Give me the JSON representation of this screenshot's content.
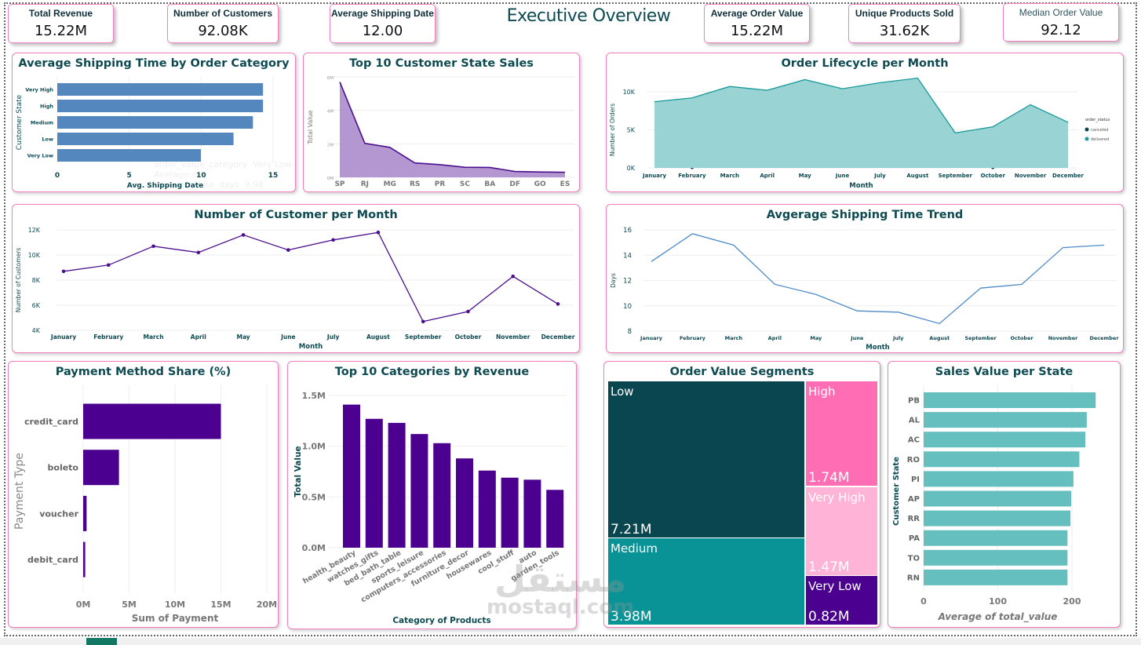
{
  "header": {
    "title": "Executive Overview",
    "kpis": [
      {
        "label": "Total Revenue",
        "value": "15.22M"
      },
      {
        "label": "Number of Customers",
        "value": "92.08K"
      },
      {
        "label": "Average Shipping Date",
        "value": "12.00"
      },
      {
        "label": "Average Order Value",
        "value": "15.22M"
      },
      {
        "label": "Unique Products Sold",
        "value": "31.62K"
      },
      {
        "label": "Median Order Value",
        "value": "92.12"
      }
    ]
  },
  "tooltip_ghost": {
    "field": "order_value_category",
    "field_value": "Very Low",
    "measure": "Average of shipping_time_days",
    "measure_value": "9.98"
  },
  "watermark": {
    "arabic": "مستقل",
    "latin": "mostaql.com"
  },
  "colors": {
    "title": "#0d4a52",
    "card_border": "#f27fbf",
    "blue_bar": "#5387be",
    "purple": "#4b0090",
    "purple_area": "#b497d0",
    "teal_area": "#99d3d3",
    "teal_line": "#1a9a9a",
    "teal_bar": "#66bfbf"
  },
  "chart_data": [
    {
      "type": "bar",
      "orientation": "horizontal",
      "title": "Average Shipping Time by Order Category",
      "xlabel": "Avg. Shipping Date",
      "ylabel": "Customer State",
      "categories": [
        "Very High",
        "High",
        "Medium",
        "Low",
        "Very Low"
      ],
      "values": [
        14.3,
        14.3,
        13.6,
        12.25,
        9.98
      ],
      "xlim": [
        0,
        15
      ],
      "xticks": [
        "0",
        "5",
        "10",
        "15"
      ],
      "grid": true
    },
    {
      "type": "area",
      "title": "Top 10 Customer State Sales",
      "xlabel": "",
      "ylabel": "Total Value",
      "categories": [
        "SP",
        "RJ",
        "MG",
        "RS",
        "PR",
        "SC",
        "BA",
        "DF",
        "GO",
        "ES"
      ],
      "values": [
        5.7,
        2.03,
        1.79,
        0.86,
        0.76,
        0.6,
        0.59,
        0.35,
        0.32,
        0.3
      ],
      "unit": "M",
      "ylim": [
        0,
        6
      ],
      "yticks": [
        "0M",
        "2M",
        "4M",
        "6M"
      ],
      "grid": true
    },
    {
      "type": "area",
      "title": "Order Lifecycle per Month",
      "xlabel": "Month",
      "ylabel": "Number of Orders",
      "categories": [
        "January",
        "February",
        "March",
        "April",
        "May",
        "June",
        "July",
        "August",
        "September",
        "October",
        "November",
        "December"
      ],
      "legend_title": "order_status",
      "legend_position": "right",
      "series": [
        {
          "name": "canceled",
          "color": "#0a4650",
          "values": [
            null,
            0.05,
            null,
            null,
            null,
            null,
            null,
            null,
            null,
            0.05,
            null,
            null
          ]
        },
        {
          "name": "delivered",
          "color": "#1a9a9a",
          "values": [
            8.7,
            9.2,
            10.7,
            10.2,
            11.6,
            10.4,
            11.2,
            11.8,
            4.6,
            5.4,
            8.3,
            6.0
          ]
        }
      ],
      "unit": "K",
      "ylim": [
        0,
        12
      ],
      "yticks": [
        "0K",
        "5K",
        "10K"
      ],
      "grid": true
    },
    {
      "type": "line",
      "title": "Number of Customer per Month",
      "xlabel": "Month",
      "ylabel": "Number of Customers",
      "categories": [
        "January",
        "February",
        "March",
        "April",
        "May",
        "June",
        "July",
        "August",
        "September",
        "October",
        "November",
        "December"
      ],
      "values": [
        8.7,
        9.2,
        10.7,
        10.2,
        11.6,
        10.4,
        11.2,
        11.8,
        4.7,
        5.5,
        8.3,
        6.1
      ],
      "unit": "K",
      "ylim": [
        4,
        12
      ],
      "yticks": [
        "4K",
        "6K",
        "8K",
        "10K",
        "12K"
      ],
      "grid": true
    },
    {
      "type": "line",
      "title": "Avgerage Shipping Time Trend",
      "xlabel": "Month",
      "ylabel": "Days",
      "categories": [
        "January",
        "February",
        "March",
        "April",
        "May",
        "June",
        "July",
        "August",
        "September",
        "October",
        "November",
        "December"
      ],
      "values": [
        13.5,
        15.7,
        14.8,
        11.7,
        10.9,
        9.6,
        9.5,
        8.6,
        11.4,
        11.7,
        14.6,
        14.8
      ],
      "ylim": [
        8,
        16
      ],
      "yticks": [
        "8",
        "10",
        "12",
        "14",
        "16"
      ],
      "grid": true
    },
    {
      "type": "bar",
      "orientation": "horizontal",
      "title": "Payment Method Share (%)",
      "xlabel": "Sum of Payment",
      "ylabel": "Payment Type",
      "categories": [
        "credit_card",
        "boleto",
        "voucher",
        "debit_card"
      ],
      "values": [
        15.0,
        3.9,
        0.37,
        0.22
      ],
      "unit": "M",
      "xlim": [
        0,
        20
      ],
      "xticks": [
        "0M",
        "5M",
        "10M",
        "15M",
        "20M"
      ],
      "grid": true
    },
    {
      "type": "bar",
      "title": "Top 10 Categories by Revenue",
      "xlabel": "Category of Products",
      "ylabel": "Total Value",
      "categories": [
        "health_beauty",
        "watches_gifts",
        "bed_bath_table",
        "sports_leisure",
        "computers_accessories",
        "furniture_decor",
        "housewares",
        "cool_stuff",
        "auto",
        "garden_tools"
      ],
      "values": [
        1.41,
        1.27,
        1.23,
        1.12,
        1.03,
        0.88,
        0.76,
        0.69,
        0.67,
        0.57
      ],
      "unit": "M",
      "ylim": [
        0,
        1.5
      ],
      "yticks": [
        "0.0M",
        "0.5M",
        "1.0M",
        "1.5M"
      ],
      "grid": true
    },
    {
      "type": "treemap",
      "title": "Order Value Segments",
      "items": [
        {
          "name": "Low",
          "value": 7.21,
          "label": "7.21M",
          "color": "#0a4650"
        },
        {
          "name": "Medium",
          "value": 3.98,
          "label": "3.98M",
          "color": "#0a9396"
        },
        {
          "name": "High",
          "value": 1.74,
          "label": "1.74M",
          "color": "#ff6eb4"
        },
        {
          "name": "Very High",
          "value": 1.47,
          "label": "1.47M",
          "color": "#ffb3d6"
        },
        {
          "name": "Very Low",
          "value": 0.82,
          "label": "0.82M",
          "color": "#4b0090"
        }
      ]
    },
    {
      "type": "bar",
      "orientation": "horizontal",
      "title": "Sales Value per State",
      "xlabel": "Average of total_value",
      "ylabel": "Customer State",
      "categories": [
        "PB",
        "AL",
        "AC",
        "RO",
        "PI",
        "AP",
        "RR",
        "PA",
        "TO",
        "RN"
      ],
      "values": [
        232,
        220,
        218,
        210,
        202,
        199,
        198,
        194,
        194,
        194
      ],
      "xlim": [
        0,
        250
      ],
      "xticks": [
        "0",
        "100",
        "200"
      ],
      "grid": true
    }
  ]
}
